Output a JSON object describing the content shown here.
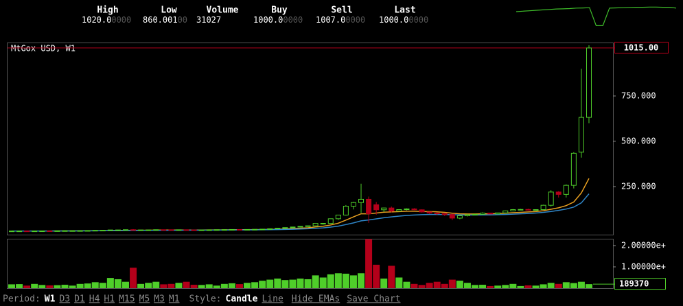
{
  "stats": [
    {
      "label": "High",
      "main": "1020.0",
      "tail": "0000"
    },
    {
      "label": "Low",
      "main": "860.001",
      "tail": "00"
    },
    {
      "label": "Volume",
      "main": "31027",
      "tail": ""
    },
    {
      "label": "Buy",
      "main": "1000.0",
      "tail": "0000"
    },
    {
      "label": "Sell",
      "main": "1007.0",
      "tail": "0000"
    },
    {
      "label": "Last",
      "main": "1000.0",
      "tail": "0000"
    }
  ],
  "sparkline": {
    "color": "#3fbf2a",
    "ylim": [
      780,
      1030
    ],
    "values": [
      960,
      965,
      970,
      975,
      980,
      985,
      990,
      992,
      995,
      1000,
      1002,
      1005,
      800,
      800,
      1000,
      1003,
      1005,
      1008,
      1010,
      1010,
      1012,
      1012,
      1010,
      1010,
      1000
    ]
  },
  "chart_data": {
    "type": "candlestick",
    "title": "MtGox USD, W1",
    "up_color": "#4fce2a",
    "down_color": "#b4001a",
    "ylim": [
      0,
      1045
    ],
    "yticks": [
      {
        "value": 250,
        "label": "250.000"
      },
      {
        "value": 500,
        "label": "500.000"
      },
      {
        "value": 750,
        "label": "750.000"
      }
    ],
    "last_price": {
      "value": 1015,
      "label": "1015.00"
    },
    "open": [
      4.9,
      5.0,
      5.1,
      5.0,
      5.3,
      5.5,
      5.4,
      6.1,
      6.6,
      6.7,
      7.0,
      7.6,
      8.8,
      9.1,
      10.8,
      10.9,
      12.2,
      10.0,
      10.9,
      11.0,
      12.2,
      12.0,
      11.7,
      11.9,
      11.0,
      10.7,
      11.0,
      11.5,
      12.3,
      12.6,
      13.4,
      13.3,
      13.5,
      14.2,
      15.3,
      17.4,
      20.4,
      23.8,
      27.1,
      30.5,
      33.6,
      46.9,
      47.2,
      72.5,
      93.0,
      142.0,
      162.0,
      180,
      150,
      122,
      132,
      115,
      123,
      127,
      122,
      110,
      104,
      101,
      96,
      76,
      89,
      95,
      97,
      104,
      99,
      105,
      116,
      123,
      124,
      120,
      123,
      147,
      220,
      207,
      257,
      440,
      632
    ],
    "high": [
      5.2,
      5.3,
      5.2,
      5.4,
      5.6,
      5.7,
      6.2,
      6.8,
      6.9,
      7.2,
      7.7,
      8.9,
      9.5,
      10.9,
      11.3,
      12.5,
      15.4,
      11.5,
      11.2,
      12.4,
      12.5,
      12.1,
      12.0,
      12.0,
      11.2,
      11.1,
      11.6,
      12.5,
      12.9,
      13.5,
      13.6,
      13.8,
      14.3,
      15.5,
      17.5,
      20.5,
      24.0,
      27.5,
      31.0,
      34.5,
      47.5,
      48.0,
      74.0,
      94.0,
      148.0,
      166.0,
      266.0,
      195,
      165,
      134,
      140,
      125,
      130,
      131,
      124,
      112,
      108,
      103,
      100,
      92,
      98,
      99,
      108,
      106,
      106,
      118,
      126,
      127,
      128,
      125,
      150,
      230,
      225,
      262,
      440,
      900,
      1030
    ],
    "low": [
      4.8,
      4.9,
      4.9,
      5.0,
      5.2,
      5.3,
      5.4,
      6.0,
      6.4,
      6.5,
      6.9,
      7.5,
      8.5,
      9.0,
      10.2,
      10.7,
      7.5,
      9.8,
      10.5,
      10.8,
      11.7,
      11.5,
      11.4,
      10.9,
      10.3,
      10.4,
      10.9,
      11.4,
      12.2,
      12.5,
      13.1,
      13.2,
      13.4,
      14.1,
      15.2,
      17.2,
      19.8,
      23.5,
      25.0,
      30.0,
      33.0,
      40.0,
      46.5,
      67.0,
      90.0,
      124.0,
      105.0,
      50,
      95,
      110,
      108,
      113,
      119,
      120,
      107,
      99,
      92,
      88,
      65,
      70,
      85,
      93,
      96,
      97,
      98,
      103,
      114,
      120,
      119,
      117,
      122,
      140,
      190,
      190,
      240,
      410,
      600
    ],
    "close": [
      5.0,
      5.1,
      5.0,
      5.3,
      5.5,
      5.4,
      6.1,
      6.6,
      6.7,
      7.0,
      7.6,
      8.8,
      9.1,
      10.8,
      10.9,
      12.2,
      10.0,
      10.9,
      11.0,
      12.2,
      12.0,
      11.7,
      11.9,
      11.0,
      10.7,
      11.0,
      11.5,
      12.3,
      12.6,
      13.4,
      13.3,
      13.5,
      14.2,
      15.3,
      17.4,
      20.4,
      23.8,
      27.1,
      30.5,
      33.6,
      46.9,
      47.2,
      72.5,
      93.0,
      142.0,
      162.0,
      180.0,
      100,
      122,
      132,
      115,
      123,
      127,
      122,
      110,
      104,
      101,
      96,
      76,
      89,
      95,
      97,
      104,
      99,
      105,
      116,
      123,
      124,
      120,
      123,
      147,
      220,
      207,
      257,
      434,
      632,
      1015
    ],
    "emas": [
      {
        "color": "#e8a020",
        "values": [
          5,
          5,
          5,
          5,
          5.1,
          5.2,
          5.4,
          5.6,
          5.8,
          6.0,
          6.3,
          6.7,
          7.1,
          7.7,
          8.2,
          8.8,
          8.9,
          9.2,
          9.5,
          9.9,
          10.2,
          10.4,
          10.6,
          10.6,
          10.6,
          10.6,
          10.8,
          11.1,
          11.4,
          11.8,
          12.1,
          12.4,
          12.7,
          13.2,
          13.9,
          14.9,
          16.5,
          18.4,
          20.6,
          22.9,
          27.3,
          30.9,
          38.4,
          48.1,
          65.2,
          82.8,
          100,
          100,
          104,
          109,
          110,
          112,
          114,
          114,
          113,
          112,
          111,
          108,
          103,
          100,
          99,
          99,
          100,
          100,
          101,
          103,
          106,
          108,
          110,
          112,
          117,
          125,
          133,
          145,
          165,
          215,
          295,
          null
        ]
      },
      {
        "color": "#2f86c8",
        "values": [
          5,
          5,
          5,
          5,
          5,
          5.1,
          5.2,
          5.3,
          5.4,
          5.6,
          5.8,
          6.0,
          6.3,
          6.6,
          7.0,
          7.4,
          7.6,
          7.9,
          8.2,
          8.5,
          8.8,
          9.0,
          9.2,
          9.4,
          9.5,
          9.6,
          9.8,
          10.0,
          10.2,
          10.5,
          10.8,
          11.0,
          11.3,
          11.6,
          12.1,
          12.7,
          13.6,
          14.7,
          16.0,
          17.5,
          20.1,
          22.5,
          26.6,
          31.8,
          40.4,
          49.6,
          61,
          66,
          72,
          78,
          83,
          87,
          91,
          93,
          95,
          96,
          96,
          96,
          95,
          94,
          93,
          93,
          94,
          94,
          95,
          96,
          98,
          100,
          102,
          104,
          108,
          113,
          119,
          126,
          137,
          160,
          210,
          null
        ]
      }
    ],
    "volume": {
      "ylim": [
        0,
        2320000
      ],
      "yticks": [
        {
          "value": 1000000,
          "label": "1.00000e+"
        },
        {
          "value": 2000000,
          "label": "2.00000e+"
        }
      ],
      "values": [
        180000,
        190000,
        120000,
        200000,
        150000,
        130000,
        140000,
        160000,
        120000,
        200000,
        220000,
        280000,
        250000,
        480000,
        420000,
        300000,
        960000,
        200000,
        250000,
        300000,
        180000,
        200000,
        250000,
        300000,
        160000,
        150000,
        180000,
        120000,
        200000,
        230000,
        190000,
        250000,
        280000,
        350000,
        400000,
        450000,
        380000,
        400000,
        450000,
        420000,
        600000,
        500000,
        650000,
        700000,
        680000,
        600000,
        700000,
        2300000,
        1100000,
        450000,
        1050000,
        500000,
        300000,
        200000,
        150000,
        250000,
        300000,
        200000,
        400000,
        350000,
        250000,
        150000,
        160000,
        100000,
        120000,
        150000,
        200000,
        100000,
        130000,
        120000,
        180000,
        250000,
        200000,
        280000,
        240000,
        300000,
        189370
      ]
    }
  },
  "toolbar": {
    "period_label": "Period:",
    "periods": [
      "W1",
      "D3",
      "D1",
      "H4",
      "H1",
      "M15",
      "M5",
      "M3",
      "M1"
    ],
    "style_label": "Style:",
    "styles": [
      "Candle",
      "Line"
    ],
    "actions": [
      "Hide EMAs",
      "Save Chart"
    ]
  }
}
